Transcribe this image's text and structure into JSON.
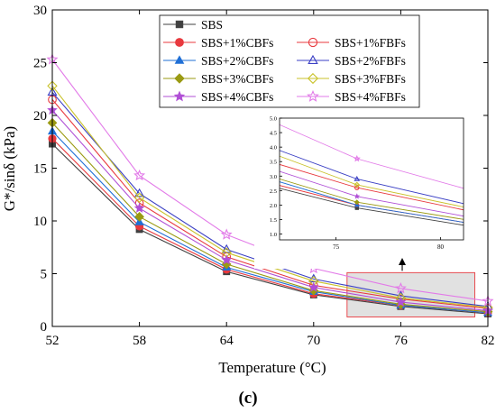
{
  "caption": "(c)",
  "chart_data": [
    {
      "type": "line",
      "title": "",
      "xlabel": "Temperature (°C)",
      "ylabel": "G*/sinδ (kPa)",
      "x": [
        52,
        58,
        64,
        70,
        76,
        82
      ],
      "xticks": [
        "52",
        "58",
        "64",
        "70",
        "76",
        "82"
      ],
      "yticks": [
        "0",
        "5",
        "10",
        "15",
        "20",
        "25",
        "30"
      ],
      "xlim": [
        52,
        82
      ],
      "ylim": [
        0,
        30
      ],
      "grid": false,
      "legend_position": "top-right",
      "highlight_box": {
        "x_range": [
          72.3,
          81.1
        ],
        "y_range": [
          0.9,
          5.1
        ]
      },
      "series": [
        {
          "name": "SBS",
          "color": "#404040",
          "marker": "square-filled",
          "values": [
            17.3,
            9.2,
            5.2,
            3.0,
            1.9,
            1.2
          ]
        },
        {
          "name": "SBS+1%CBFs",
          "color": "#e8393e",
          "marker": "circle-filled",
          "values": [
            17.8,
            9.5,
            5.4,
            3.1,
            2.0,
            1.3
          ]
        },
        {
          "name": "SBS+1%FBFs",
          "color": "#e8393e",
          "marker": "circle-open",
          "values": [
            21.5,
            11.7,
            6.6,
            3.9,
            2.6,
            1.7
          ]
        },
        {
          "name": "SBS+2%CBFs",
          "color": "#1f6fd6",
          "marker": "triangle-filled",
          "values": [
            18.5,
            9.9,
            5.6,
            3.3,
            2.0,
            1.3
          ]
        },
        {
          "name": "SBS+2%FBFs",
          "color": "#3a3fc4",
          "marker": "triangle-open",
          "values": [
            22.2,
            12.6,
            7.3,
            4.5,
            2.9,
            1.9
          ]
        },
        {
          "name": "SBS+3%CBFs",
          "color": "#9a9a12",
          "marker": "diamond-filled",
          "values": [
            19.3,
            10.4,
            5.9,
            3.4,
            2.1,
            1.4
          ]
        },
        {
          "name": "SBS+3%FBFs",
          "color": "#c9c22a",
          "marker": "diamond-open",
          "values": [
            22.8,
            12.2,
            7.0,
            4.3,
            2.7,
            1.8
          ]
        },
        {
          "name": "SBS+4%CBFs",
          "color": "#b04fd6",
          "marker": "star-filled",
          "values": [
            20.5,
            11.2,
            6.3,
            3.7,
            2.3,
            1.5
          ]
        },
        {
          "name": "SBS+4%FBFs",
          "color": "#e27ae8",
          "marker": "star-open",
          "values": [
            25.3,
            14.3,
            8.7,
            5.5,
            3.6,
            2.4
          ]
        }
      ]
    },
    {
      "type": "line",
      "title": "",
      "xlabel": "",
      "ylabel": "",
      "xlim": [
        72.3,
        81.1
      ],
      "ylim": [
        0.8,
        5.0
      ],
      "xticks": [
        "75",
        "80"
      ],
      "yticks": [
        "1.0",
        "1.5",
        "2.0",
        "2.5",
        "3.0",
        "3.5",
        "4.0",
        "4.5",
        "5.0"
      ],
      "note": "zoomed inset of the highlighted region, same series"
    }
  ]
}
